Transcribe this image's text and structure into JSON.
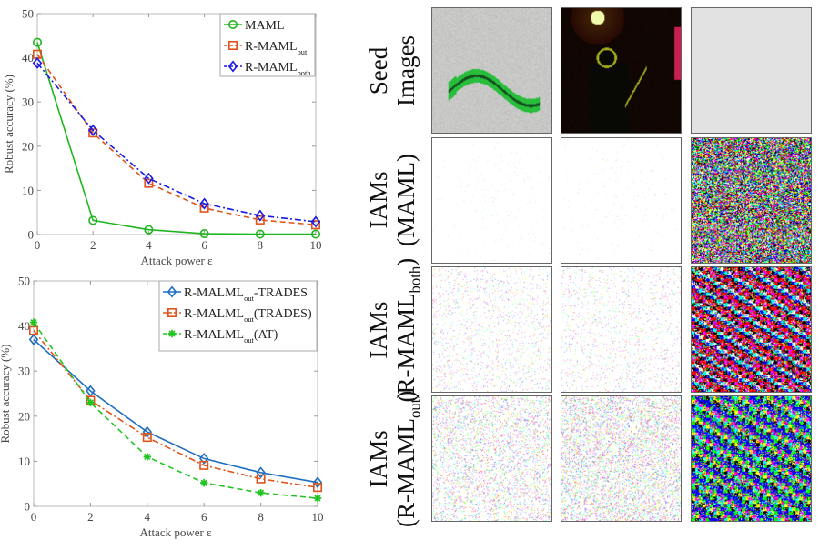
{
  "chart_data": [
    {
      "type": "line",
      "title": "",
      "xlabel": "Attack power ε",
      "ylabel": "Robust accuracy (%)",
      "x": [
        0,
        2,
        4,
        6,
        8,
        10
      ],
      "xlim": [
        0,
        10
      ],
      "ylim": [
        0,
        50
      ],
      "xticks": [
        "0",
        "2",
        "4",
        "6",
        "8",
        "10"
      ],
      "yticks": [
        "0",
        "10",
        "20",
        "30",
        "40",
        "50"
      ],
      "grid": false,
      "legend_position": "top-right",
      "series": [
        {
          "name": "MAML",
          "name_sub": "",
          "color": "#1fb51f",
          "dash": "solid",
          "marker": "circle",
          "values": [
            43.5,
            3.2,
            1.1,
            0.2,
            0.1,
            0.1
          ]
        },
        {
          "name": "R-MAML",
          "name_sub": "out",
          "color": "#e0541b",
          "dash": "dashed",
          "marker": "square",
          "values": [
            40.8,
            23.0,
            11.6,
            6.0,
            3.3,
            2.2
          ]
        },
        {
          "name": "R-MAML",
          "name_sub": "both",
          "color": "#1a1ae6",
          "dash": "dashdot",
          "marker": "diamond",
          "values": [
            38.8,
            23.6,
            12.7,
            7.0,
            4.3,
            2.9
          ]
        }
      ]
    },
    {
      "type": "line",
      "title": "",
      "xlabel": "Attack power ε",
      "ylabel": "Robust accuracy (%)",
      "x": [
        0,
        2,
        4,
        6,
        8,
        10
      ],
      "xlim": [
        0,
        10
      ],
      "ylim": [
        0,
        50
      ],
      "xticks": [
        "0",
        "2",
        "4",
        "6",
        "8",
        "10"
      ],
      "yticks": [
        "0",
        "10",
        "20",
        "30",
        "40",
        "50"
      ],
      "grid": false,
      "legend_position": "top-right",
      "series": [
        {
          "name": "R-MALML",
          "name_sub": "out",
          "name_suffix": "-TRADES",
          "color": "#1f6fc0",
          "dash": "solid",
          "marker": "diamond",
          "values": [
            37.0,
            25.6,
            16.5,
            10.6,
            7.5,
            5.3
          ]
        },
        {
          "name": "R-MALML",
          "name_sub": "out",
          "name_suffix": "(TRADES)",
          "color": "#e0541b",
          "dash": "dashdot",
          "marker": "square",
          "values": [
            39.0,
            23.5,
            15.3,
            9.1,
            6.1,
            4.2
          ]
        },
        {
          "name": "R-MALML",
          "name_sub": "out",
          "name_suffix": "(AT)",
          "color": "#22c422",
          "dash": "dashed",
          "marker": "asterisk",
          "values": [
            40.8,
            23.0,
            11.0,
            5.2,
            3.0,
            1.8
          ]
        }
      ]
    }
  ],
  "image_grid": {
    "row_labels": [
      {
        "line1": "Seed",
        "line2": "Images",
        "line2_sub": ""
      },
      {
        "line1": "IAMs",
        "line2": "(MAML)",
        "line2_sub": ""
      },
      {
        "line1": "IAMs",
        "line2": "(R-MAML",
        "line2_sub": "both",
        "line2_end": ")"
      },
      {
        "line1": "IAMs",
        "line2": "(R-MAML",
        "line2_sub": "out",
        "line2_end": ")"
      }
    ],
    "cells": [
      [
        "worm seed image",
        "concert silhouette seed image",
        "blank gray seed image"
      ],
      [
        "faint IAM",
        "faint IAM",
        "dense random noise IAM"
      ],
      [
        "faint worm-shaped IAM",
        "faint IAM",
        "structured colorful IAM"
      ],
      [
        "faint colorful worm IAM",
        "faint dotted IAM",
        "structured colorful IAM"
      ]
    ]
  }
}
